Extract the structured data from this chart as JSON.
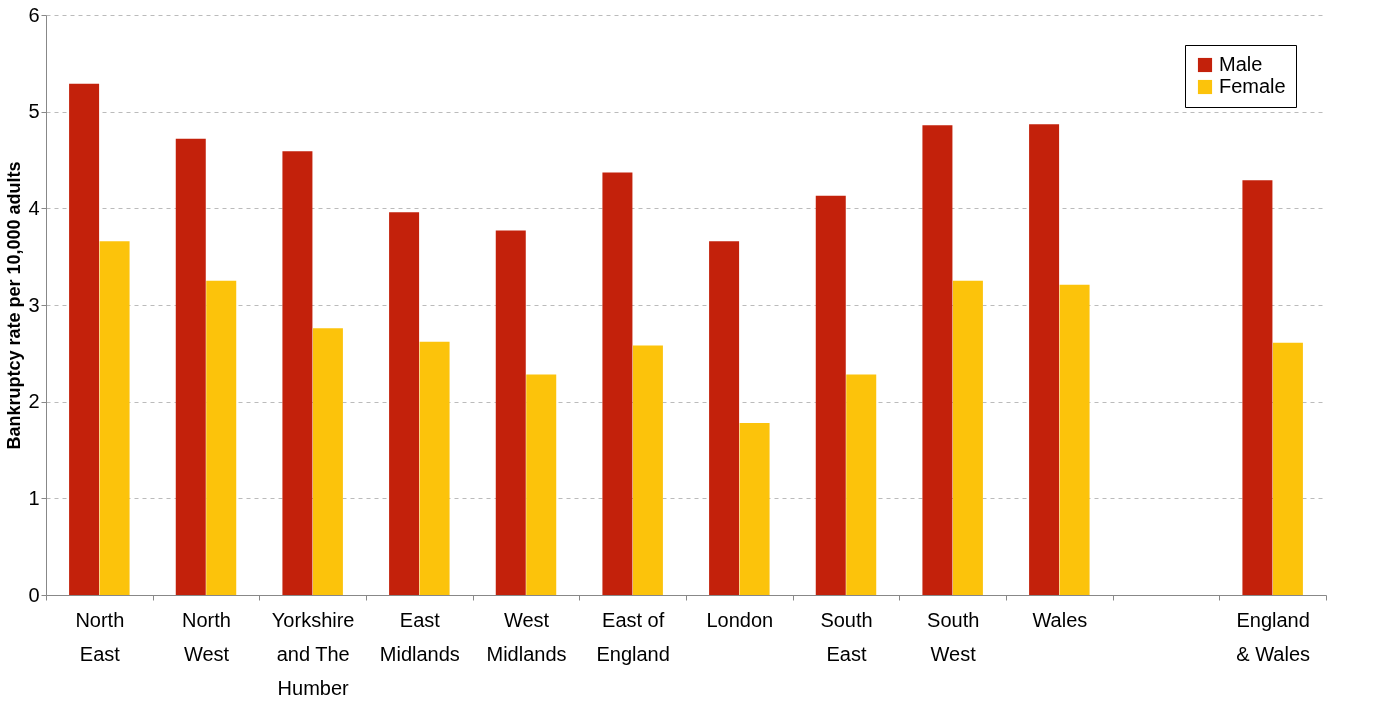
{
  "chart_data": {
    "type": "bar",
    "ylabel": "Bankruptcy rate per 10,000 adults",
    "categories": [
      "North\nEast",
      "North\nWest",
      "Yorkshire\nand The\nHumber",
      "East\nMidlands",
      "West\nMidlands",
      "East of\nEngland",
      "London",
      "South\nEast",
      "South\nWest",
      "Wales",
      null,
      "England\n& Wales"
    ],
    "series": [
      {
        "name": "Male",
        "color": "#c3210b",
        "values": [
          5.29,
          4.72,
          4.59,
          3.96,
          3.77,
          4.37,
          3.66,
          4.13,
          4.86,
          4.87,
          null,
          4.29
        ]
      },
      {
        "name": "Female",
        "color": "#fcc30b",
        "values": [
          3.66,
          3.25,
          2.76,
          2.62,
          2.28,
          2.58,
          1.78,
          2.28,
          3.25,
          3.21,
          null,
          2.61
        ]
      }
    ],
    "ylim": [
      0,
      6
    ],
    "yticks": [
      0,
      1,
      2,
      3,
      4,
      5,
      6
    ],
    "grid": "y",
    "legend": "top right"
  }
}
